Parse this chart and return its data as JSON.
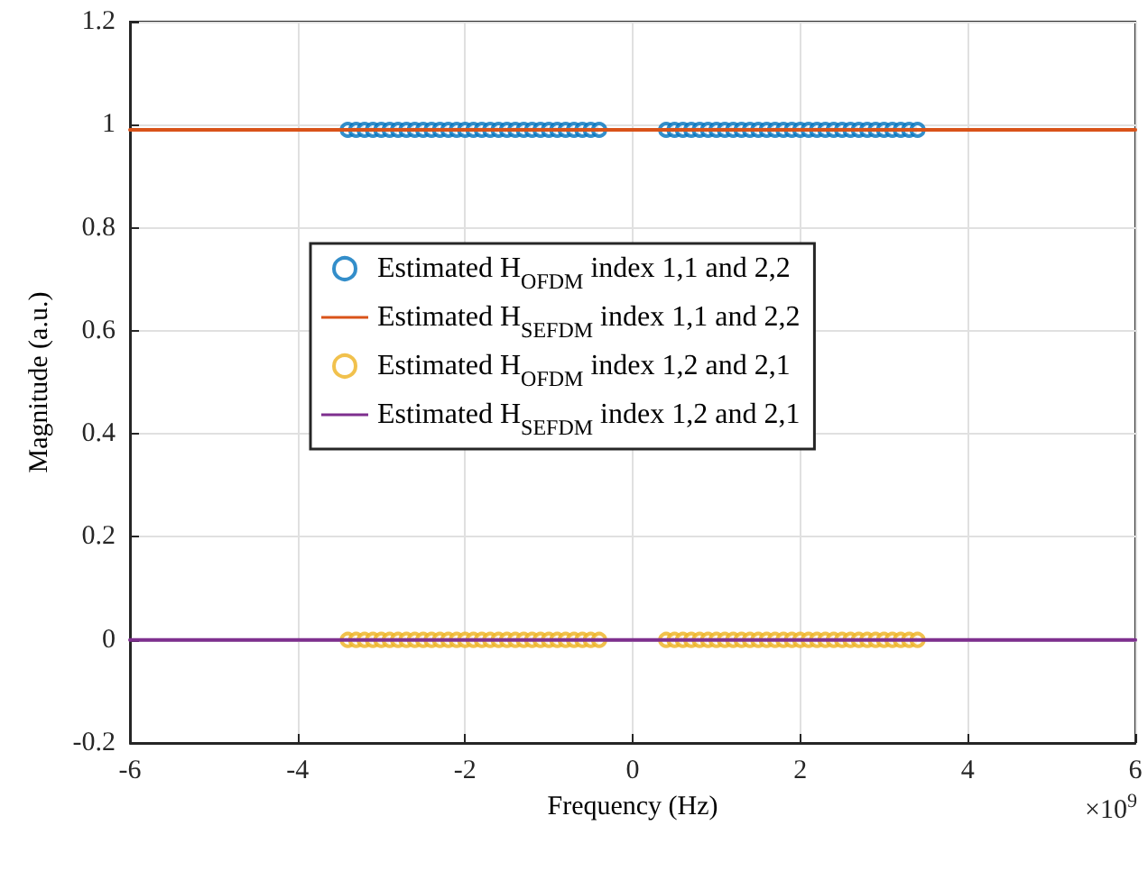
{
  "chart_data": {
    "type": "scatter",
    "xlabel": "Frequency (Hz)",
    "ylabel": "Magnitude (a.u.)",
    "xlim": [
      -6,
      6
    ],
    "xticks": [
      -6,
      -4,
      -2,
      0,
      2,
      4,
      6
    ],
    "ylim": [
      -0.2,
      1.2
    ],
    "yticks": [
      -0.2,
      0,
      0.2,
      0.4,
      0.6,
      0.8,
      1,
      1.2
    ],
    "grid": true,
    "legend": "center",
    "annotations": [
      "×10$^{9}$"
    ],
    "series": [
      {
        "name": "Estimated H$_{OFDM}$ index 1,1 and 2,2",
        "marker": "circle",
        "color": "#0072bd",
        "x": [
          -3.4,
          -3.3,
          -3.2,
          -3.1,
          -3.0,
          -2.9,
          -2.8,
          -2.7,
          -2.6,
          -2.5,
          -2.4,
          -2.3,
          -2.2,
          -2.1,
          -2.0,
          -1.9,
          -1.8,
          -1.7,
          -1.6,
          -1.5,
          -1.4,
          -1.3,
          -1.2,
          -1.1,
          -1.0,
          -0.9,
          -0.8,
          -0.7,
          -0.6,
          -0.5,
          -0.4,
          0.4,
          0.5,
          0.6,
          0.7,
          0.8,
          0.9,
          1.0,
          1.1,
          1.2,
          1.3,
          1.4,
          1.5,
          1.6,
          1.7,
          1.8,
          1.9,
          2.0,
          2.1,
          2.2,
          2.3,
          2.4,
          2.5,
          2.6,
          2.7,
          2.8,
          2.9,
          3.0,
          3.1,
          3.2,
          3.3,
          3.4
        ],
        "values": [
          0.99,
          0.99,
          0.99,
          0.99,
          0.99,
          0.99,
          0.99,
          0.99,
          0.99,
          0.99,
          0.99,
          0.99,
          0.99,
          0.99,
          0.99,
          0.99,
          0.99,
          0.99,
          0.99,
          0.99,
          0.99,
          0.99,
          0.99,
          0.99,
          0.99,
          0.99,
          0.99,
          0.99,
          0.99,
          0.99,
          0.99,
          0.99,
          0.99,
          0.99,
          0.99,
          0.99,
          0.99,
          0.99,
          0.99,
          0.99,
          0.99,
          0.99,
          0.99,
          0.99,
          0.99,
          0.99,
          0.99,
          0.99,
          0.99,
          0.99,
          0.99,
          0.99,
          0.99,
          0.99,
          0.99,
          0.99,
          0.99,
          0.99,
          0.99,
          0.99,
          0.99,
          0.99
        ]
      },
      {
        "name": "Estimated H$_{SEFDM}$ index 1,1 and 2,2",
        "type": "line",
        "color": "#d95319",
        "x": [
          -6,
          6
        ],
        "values": [
          0.99,
          0.99
        ]
      },
      {
        "name": "Estimated H$_{OFDM}$ index 1,2 and 2,1",
        "marker": "circle",
        "color": "#edb120",
        "x": [
          -3.4,
          -3.3,
          -3.2,
          -3.1,
          -3.0,
          -2.9,
          -2.8,
          -2.7,
          -2.6,
          -2.5,
          -2.4,
          -2.3,
          -2.2,
          -2.1,
          -2.0,
          -1.9,
          -1.8,
          -1.7,
          -1.6,
          -1.5,
          -1.4,
          -1.3,
          -1.2,
          -1.1,
          -1.0,
          -0.9,
          -0.8,
          -0.7,
          -0.6,
          -0.5,
          -0.4,
          0.4,
          0.5,
          0.6,
          0.7,
          0.8,
          0.9,
          1.0,
          1.1,
          1.2,
          1.3,
          1.4,
          1.5,
          1.6,
          1.7,
          1.8,
          1.9,
          2.0,
          2.1,
          2.2,
          2.3,
          2.4,
          2.5,
          2.6,
          2.7,
          2.8,
          2.9,
          3.0,
          3.1,
          3.2,
          3.3,
          3.4
        ],
        "values": [
          0,
          0,
          0,
          0,
          0,
          0,
          0,
          0,
          0,
          0,
          0,
          0,
          0,
          0,
          0,
          0,
          0,
          0,
          0,
          0,
          0,
          0,
          0,
          0,
          0,
          0,
          0,
          0,
          0,
          0,
          0,
          0,
          0,
          0,
          0,
          0,
          0,
          0,
          0,
          0,
          0,
          0,
          0,
          0,
          0,
          0,
          0,
          0,
          0,
          0,
          0,
          0,
          0,
          0,
          0,
          0,
          0,
          0,
          0,
          0,
          0,
          0
        ]
      },
      {
        "name": "Estimated H$_{SEFDM}$ index 1,2 and 2,1",
        "type": "line",
        "color": "#7e2f8e",
        "x": [
          -6,
          6
        ],
        "values": [
          0,
          0
        ]
      }
    ]
  }
}
